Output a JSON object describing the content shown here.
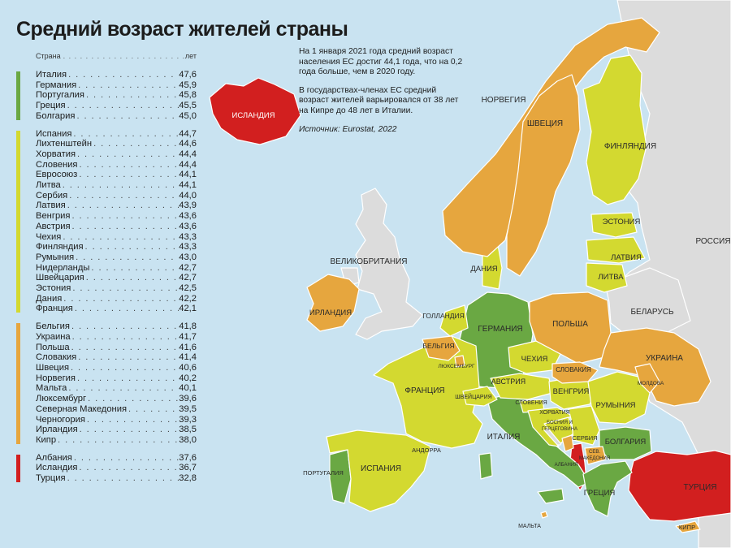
{
  "title": "Средний возраст жителей страны",
  "legend": {
    "header_country": "Страна",
    "header_unit": "лет",
    "groups": [
      {
        "color": "#6aa843",
        "items": [
          {
            "name": "Италия",
            "value": "47,6"
          },
          {
            "name": "Германия",
            "value": "45,9"
          },
          {
            "name": "Португалия",
            "value": "45,8"
          },
          {
            "name": "Греция",
            "value": "45,5"
          },
          {
            "name": "Болгария",
            "value": "45,0"
          }
        ]
      },
      {
        "color": "#d3d930",
        "items": [
          {
            "name": "Испания",
            "value": "44,7"
          },
          {
            "name": "Лихтенштейн",
            "value": "44,6"
          },
          {
            "name": "Хорватия",
            "value": "44,4"
          },
          {
            "name": "Словения",
            "value": "44,4"
          },
          {
            "name": "Евросоюз",
            "value": "44,1"
          },
          {
            "name": "Литва",
            "value": "44,1"
          },
          {
            "name": "Сербия",
            "value": "44,0"
          },
          {
            "name": "Латвия",
            "value": "43,9"
          },
          {
            "name": "Венгрия",
            "value": "43,6"
          },
          {
            "name": "Австрия",
            "value": "43,6"
          },
          {
            "name": "Чехия",
            "value": "43,3"
          },
          {
            "name": "Финляндия",
            "value": "43,3"
          },
          {
            "name": "Румыния",
            "value": "43,0"
          },
          {
            "name": "Нидерланды",
            "value": "42,7"
          },
          {
            "name": "Швейцария",
            "value": "42,7"
          },
          {
            "name": "Эстония",
            "value": "42,5"
          },
          {
            "name": "Дания",
            "value": "42,2"
          },
          {
            "name": "Франция",
            "value": "42,1"
          }
        ]
      },
      {
        "color": "#e6a63e",
        "items": [
          {
            "name": "Бельгия",
            "value": "41,8"
          },
          {
            "name": "Украина",
            "value": "41,7"
          },
          {
            "name": "Польша",
            "value": "41,6"
          },
          {
            "name": "Словакия",
            "value": "41,4"
          },
          {
            "name": "Швеция",
            "value": "40,6"
          },
          {
            "name": "Норвегия",
            "value": "40,2"
          },
          {
            "name": "Мальта",
            "value": "40,1"
          },
          {
            "name": "Люксембург",
            "value": "39,6"
          },
          {
            "name": "Северная Македония",
            "value": "39,5"
          },
          {
            "name": "Черногория",
            "value": "39,3"
          },
          {
            "name": "Ирландия",
            "value": "38,5"
          },
          {
            "name": "Кипр",
            "value": "38,0"
          }
        ]
      },
      {
        "color": "#d21f1f",
        "items": [
          {
            "name": "Албания",
            "value": "37,6"
          },
          {
            "name": "Исландия",
            "value": "36,7"
          },
          {
            "name": "Турция",
            "value": "32,8"
          }
        ]
      }
    ]
  },
  "info": {
    "paragraph1": "На 1 января 2021 года средний возраст населения ЕС достиг 44,1 года, что на 0,2 года больше, чем в 2020 году.",
    "paragraph2": "В государствах-членах ЕС средний возраст жителей варьировался от 38 лет на Кипре до 48 лет в Италии.",
    "source": "Источник: Eurostat, 2022"
  },
  "colors": {
    "sea": "#c9e3f1",
    "non_member": "#dcdcdc",
    "green": "#6aa843",
    "yellow": "#d3d930",
    "orange": "#e6a63e",
    "red": "#d21f1f"
  },
  "map": {
    "labels": {
      "iceland": "ИСЛАНДИЯ",
      "norway": "НОРВЕГИЯ",
      "sweden": "ШВЕЦИЯ",
      "finland": "ФИНЛЯНДИЯ",
      "russia": "РОССИЯ",
      "estonia": "ЭСТОНИЯ",
      "latvia": "ЛАТВИЯ",
      "lithuania": "ЛИТВА",
      "uk": "ВЕЛИКОБРИТАНИЯ",
      "denmark": "ДАНИЯ",
      "ireland": "ИРЛАНДИЯ",
      "netherlands": "ГОЛЛАНДИЯ",
      "belarus": "БЕЛАРУСЬ",
      "germany": "ГЕРМАНИЯ",
      "poland": "ПОЛЬША",
      "belgium": "БЕЛЬГИЯ",
      "luxembourg": "ЛЮКСЕМБУРГ",
      "czechia": "ЧЕХИЯ",
      "slovakia": "СЛОВАКИЯ",
      "ukraine": "УКРАИНА",
      "moldova": "МОЛДОВА",
      "austria": "АВСТРИЯ",
      "switzerland": "ШВЕЙЦАРИЯ",
      "hungary": "ВЕНГРИЯ",
      "france": "ФРАНЦИЯ",
      "slovenia": "СЛОВЕНИЯ",
      "romania": "РУМЫНИЯ",
      "croatia": "ХОРВАТИЯ",
      "bosnia_1": "БОСНИЯ И",
      "bosnia_2": "ГЕРЦЕГОВИНА",
      "serbia": "СЕРБИЯ",
      "bulgaria": "БОЛГАРИЯ",
      "italy": "ИТАЛИЯ",
      "andorra": "АНДОРРА",
      "north_macedonia_1": "СЕВ.",
      "north_macedonia_2": "МАКЕДОНИЯ",
      "albania": "АЛБАНИЯ",
      "portugal": "ПОРТУГАЛИЯ",
      "spain": "ИСПАНИЯ",
      "greece": "ГРЕЦИЯ",
      "turkey": "ТУРЦИЯ",
      "malta": "МАЛЬТА",
      "cyprus": "КИПР"
    }
  }
}
